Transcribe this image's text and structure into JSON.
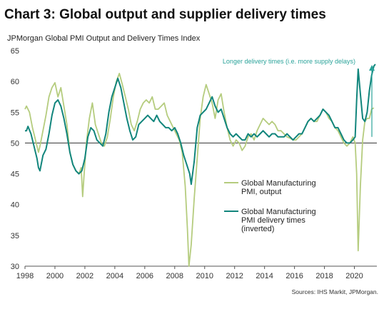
{
  "colors": {
    "output": "#b5cc7e",
    "delivery": "#11857c",
    "annotation": "#2aa39a",
    "axis": "#555555",
    "baseline": "#333333"
  },
  "chart_data": {
    "type": "line",
    "title": "Chart 3: Global output and supplier delivery times",
    "subtitle": "JPMorgan Global PMI Output and Delivery Times Index",
    "source": "Sources: IHS Markit, JPMorgan.",
    "annotation": "Longer delivery times  (i.e. more supply delays)",
    "xlim": [
      1998,
      2021.5
    ],
    "ylim": [
      30,
      65
    ],
    "xticks": [
      1998,
      2000,
      2002,
      2004,
      2006,
      2008,
      2010,
      2012,
      2014,
      2016,
      2018,
      2020
    ],
    "yticks": [
      30,
      35,
      40,
      45,
      50,
      55,
      60,
      65
    ],
    "reference_line": 50,
    "grid": false,
    "legend_position": "center-right",
    "series": [
      {
        "name": "Global Manufacturing PMI, output",
        "color_key": "output",
        "points": [
          [
            1998.0,
            55.5
          ],
          [
            1998.1,
            56.0
          ],
          [
            1998.3,
            55.0
          ],
          [
            1998.5,
            52.5
          ],
          [
            1998.7,
            50.5
          ],
          [
            1998.9,
            48.5
          ],
          [
            1999.0,
            49.5
          ],
          [
            1999.2,
            52.0
          ],
          [
            1999.4,
            54.5
          ],
          [
            1999.6,
            57.5
          ],
          [
            1999.8,
            59.0
          ],
          [
            2000.0,
            59.8
          ],
          [
            2000.2,
            57.5
          ],
          [
            2000.4,
            59.0
          ],
          [
            2000.6,
            56.0
          ],
          [
            2000.8,
            53.0
          ],
          [
            2001.0,
            48.5
          ],
          [
            2001.2,
            46.5
          ],
          [
            2001.4,
            45.5
          ],
          [
            2001.6,
            45.0
          ],
          [
            2001.75,
            46.0
          ],
          [
            2001.85,
            41.3
          ],
          [
            2001.95,
            45.0
          ],
          [
            2002.1,
            50.0
          ],
          [
            2002.3,
            54.0
          ],
          [
            2002.5,
            56.5
          ],
          [
            2002.7,
            53.0
          ],
          [
            2002.9,
            51.5
          ],
          [
            2003.1,
            50.0
          ],
          [
            2003.3,
            49.5
          ],
          [
            2003.5,
            51.0
          ],
          [
            2003.7,
            54.0
          ],
          [
            2003.9,
            57.5
          ],
          [
            2004.1,
            60.0
          ],
          [
            2004.3,
            61.3
          ],
          [
            2004.5,
            59.5
          ],
          [
            2004.7,
            57.5
          ],
          [
            2004.9,
            55.5
          ],
          [
            2005.1,
            53.0
          ],
          [
            2005.3,
            52.0
          ],
          [
            2005.5,
            53.5
          ],
          [
            2005.7,
            55.5
          ],
          [
            2005.9,
            56.5
          ],
          [
            2006.1,
            57.0
          ],
          [
            2006.3,
            56.5
          ],
          [
            2006.5,
            57.5
          ],
          [
            2006.7,
            55.5
          ],
          [
            2006.9,
            55.5
          ],
          [
            2007.1,
            56.0
          ],
          [
            2007.3,
            56.5
          ],
          [
            2007.5,
            54.5
          ],
          [
            2007.7,
            53.5
          ],
          [
            2007.9,
            52.5
          ],
          [
            2008.1,
            51.5
          ],
          [
            2008.3,
            50.5
          ],
          [
            2008.5,
            48.5
          ],
          [
            2008.7,
            43.0
          ],
          [
            2008.85,
            36.0
          ],
          [
            2008.95,
            30.0
          ],
          [
            2009.1,
            33.5
          ],
          [
            2009.3,
            41.0
          ],
          [
            2009.5,
            47.5
          ],
          [
            2009.7,
            54.0
          ],
          [
            2009.9,
            57.5
          ],
          [
            2010.1,
            59.5
          ],
          [
            2010.3,
            58.0
          ],
          [
            2010.5,
            56.5
          ],
          [
            2010.7,
            54.0
          ],
          [
            2010.9,
            57.0
          ],
          [
            2011.1,
            58.0
          ],
          [
            2011.3,
            55.0
          ],
          [
            2011.5,
            52.5
          ],
          [
            2011.7,
            50.5
          ],
          [
            2011.9,
            49.5
          ],
          [
            2012.1,
            50.5
          ],
          [
            2012.3,
            50.0
          ],
          [
            2012.5,
            48.8
          ],
          [
            2012.7,
            49.5
          ],
          [
            2012.9,
            51.0
          ],
          [
            2013.1,
            51.5
          ],
          [
            2013.3,
            50.5
          ],
          [
            2013.5,
            52.0
          ],
          [
            2013.7,
            53.0
          ],
          [
            2013.9,
            54.0
          ],
          [
            2014.1,
            53.5
          ],
          [
            2014.3,
            53.0
          ],
          [
            2014.5,
            53.5
          ],
          [
            2014.7,
            53.0
          ],
          [
            2014.9,
            52.0
          ],
          [
            2015.1,
            52.0
          ],
          [
            2015.3,
            51.5
          ],
          [
            2015.5,
            51.0
          ],
          [
            2015.7,
            50.8
          ],
          [
            2015.9,
            50.5
          ],
          [
            2016.1,
            50.5
          ],
          [
            2016.3,
            51.0
          ],
          [
            2016.5,
            51.5
          ],
          [
            2016.7,
            52.5
          ],
          [
            2016.9,
            53.5
          ],
          [
            2017.1,
            54.0
          ],
          [
            2017.3,
            53.5
          ],
          [
            2017.5,
            53.5
          ],
          [
            2017.7,
            54.5
          ],
          [
            2017.9,
            55.5
          ],
          [
            2018.1,
            55.0
          ],
          [
            2018.3,
            54.0
          ],
          [
            2018.5,
            53.5
          ],
          [
            2018.7,
            52.5
          ],
          [
            2018.9,
            52.0
          ],
          [
            2019.1,
            51.0
          ],
          [
            2019.3,
            50.0
          ],
          [
            2019.5,
            49.5
          ],
          [
            2019.7,
            50.0
          ],
          [
            2019.9,
            51.0
          ],
          [
            2020.05,
            50.0
          ],
          [
            2020.15,
            45.0
          ],
          [
            2020.25,
            32.5
          ],
          [
            2020.4,
            43.0
          ],
          [
            2020.55,
            50.5
          ],
          [
            2020.7,
            53.5
          ],
          [
            2020.85,
            54.0
          ],
          [
            2021.0,
            54.0
          ],
          [
            2021.15,
            55.5
          ],
          [
            2021.3,
            55.7
          ]
        ]
      },
      {
        "name": "Global Manufacturing PMI delivery times (inverted)",
        "color_key": "delivery",
        "points": [
          [
            1998.0,
            52.0
          ],
          [
            1998.1,
            52.0
          ],
          [
            1998.2,
            52.7
          ],
          [
            1998.4,
            51.5
          ],
          [
            1998.6,
            49.5
          ],
          [
            1998.8,
            47.5
          ],
          [
            1998.9,
            46.0
          ],
          [
            1999.0,
            45.5
          ],
          [
            1999.2,
            48.0
          ],
          [
            1999.4,
            49.0
          ],
          [
            1999.6,
            51.5
          ],
          [
            1999.8,
            54.5
          ],
          [
            2000.0,
            56.5
          ],
          [
            2000.2,
            57.0
          ],
          [
            2000.4,
            56.0
          ],
          [
            2000.6,
            54.0
          ],
          [
            2000.8,
            51.5
          ],
          [
            2001.0,
            48.5
          ],
          [
            2001.2,
            46.5
          ],
          [
            2001.4,
            45.5
          ],
          [
            2001.6,
            45.0
          ],
          [
            2001.8,
            45.5
          ],
          [
            2002.0,
            47.5
          ],
          [
            2002.2,
            51.0
          ],
          [
            2002.4,
            52.5
          ],
          [
            2002.6,
            52.0
          ],
          [
            2002.8,
            50.5
          ],
          [
            2003.0,
            50.0
          ],
          [
            2003.2,
            49.5
          ],
          [
            2003.4,
            51.5
          ],
          [
            2003.6,
            55.0
          ],
          [
            2003.8,
            57.5
          ],
          [
            2004.0,
            59.0
          ],
          [
            2004.2,
            60.5
          ],
          [
            2004.4,
            59.0
          ],
          [
            2004.6,
            56.5
          ],
          [
            2004.8,
            54.0
          ],
          [
            2005.0,
            52.0
          ],
          [
            2005.2,
            50.5
          ],
          [
            2005.4,
            51.0
          ],
          [
            2005.6,
            53.0
          ],
          [
            2005.8,
            53.5
          ],
          [
            2006.0,
            54.0
          ],
          [
            2006.2,
            54.5
          ],
          [
            2006.4,
            54.0
          ],
          [
            2006.6,
            53.5
          ],
          [
            2006.8,
            54.5
          ],
          [
            2007.0,
            53.5
          ],
          [
            2007.2,
            53.0
          ],
          [
            2007.4,
            52.5
          ],
          [
            2007.6,
            52.5
          ],
          [
            2007.8,
            52.0
          ],
          [
            2008.0,
            52.5
          ],
          [
            2008.2,
            51.5
          ],
          [
            2008.4,
            50.0
          ],
          [
            2008.6,
            48.0
          ],
          [
            2008.8,
            46.5
          ],
          [
            2009.0,
            45.0
          ],
          [
            2009.1,
            43.3
          ],
          [
            2009.3,
            47.0
          ],
          [
            2009.5,
            52.5
          ],
          [
            2009.7,
            54.5
          ],
          [
            2009.9,
            55.0
          ],
          [
            2010.1,
            55.5
          ],
          [
            2010.3,
            56.5
          ],
          [
            2010.5,
            57.5
          ],
          [
            2010.7,
            56.0
          ],
          [
            2010.9,
            55.0
          ],
          [
            2011.1,
            55.5
          ],
          [
            2011.3,
            54.0
          ],
          [
            2011.5,
            52.5
          ],
          [
            2011.7,
            51.5
          ],
          [
            2011.9,
            51.0
          ],
          [
            2012.1,
            51.5
          ],
          [
            2012.3,
            51.0
          ],
          [
            2012.5,
            50.5
          ],
          [
            2012.7,
            50.5
          ],
          [
            2012.9,
            51.5
          ],
          [
            2013.1,
            51.0
          ],
          [
            2013.3,
            51.5
          ],
          [
            2013.5,
            51.0
          ],
          [
            2013.7,
            51.5
          ],
          [
            2013.9,
            52.0
          ],
          [
            2014.1,
            51.5
          ],
          [
            2014.3,
            51.0
          ],
          [
            2014.5,
            51.5
          ],
          [
            2014.7,
            51.5
          ],
          [
            2014.9,
            51.0
          ],
          [
            2015.1,
            51.0
          ],
          [
            2015.3,
            51.0
          ],
          [
            2015.5,
            51.5
          ],
          [
            2015.7,
            51.0
          ],
          [
            2015.9,
            50.5
          ],
          [
            2016.1,
            51.0
          ],
          [
            2016.3,
            51.5
          ],
          [
            2016.5,
            51.5
          ],
          [
            2016.7,
            52.5
          ],
          [
            2016.9,
            53.5
          ],
          [
            2017.1,
            54.0
          ],
          [
            2017.3,
            53.5
          ],
          [
            2017.5,
            54.0
          ],
          [
            2017.7,
            54.5
          ],
          [
            2017.9,
            55.5
          ],
          [
            2018.1,
            55.0
          ],
          [
            2018.3,
            54.5
          ],
          [
            2018.5,
            53.5
          ],
          [
            2018.7,
            52.5
          ],
          [
            2018.9,
            52.5
          ],
          [
            2019.1,
            51.5
          ],
          [
            2019.3,
            50.5
          ],
          [
            2019.5,
            50.0
          ],
          [
            2019.7,
            50.0
          ],
          [
            2019.9,
            50.5
          ],
          [
            2020.05,
            51.0
          ],
          [
            2020.15,
            57.0
          ],
          [
            2020.25,
            62.0
          ],
          [
            2020.4,
            58.0
          ],
          [
            2020.55,
            54.0
          ],
          [
            2020.7,
            53.5
          ],
          [
            2020.85,
            55.0
          ],
          [
            2021.0,
            58.5
          ],
          [
            2021.15,
            61.0
          ],
          [
            2021.3,
            62.5
          ],
          [
            2021.4,
            62.8
          ]
        ]
      }
    ]
  },
  "legend": [
    {
      "label_lines": [
        "Global Manufacturing",
        "PMI, output"
      ],
      "color_key": "output"
    },
    {
      "label_lines": [
        "Global Manufacturing",
        "PMI delivery times",
        "(inverted)"
      ],
      "color_key": "delivery"
    }
  ]
}
